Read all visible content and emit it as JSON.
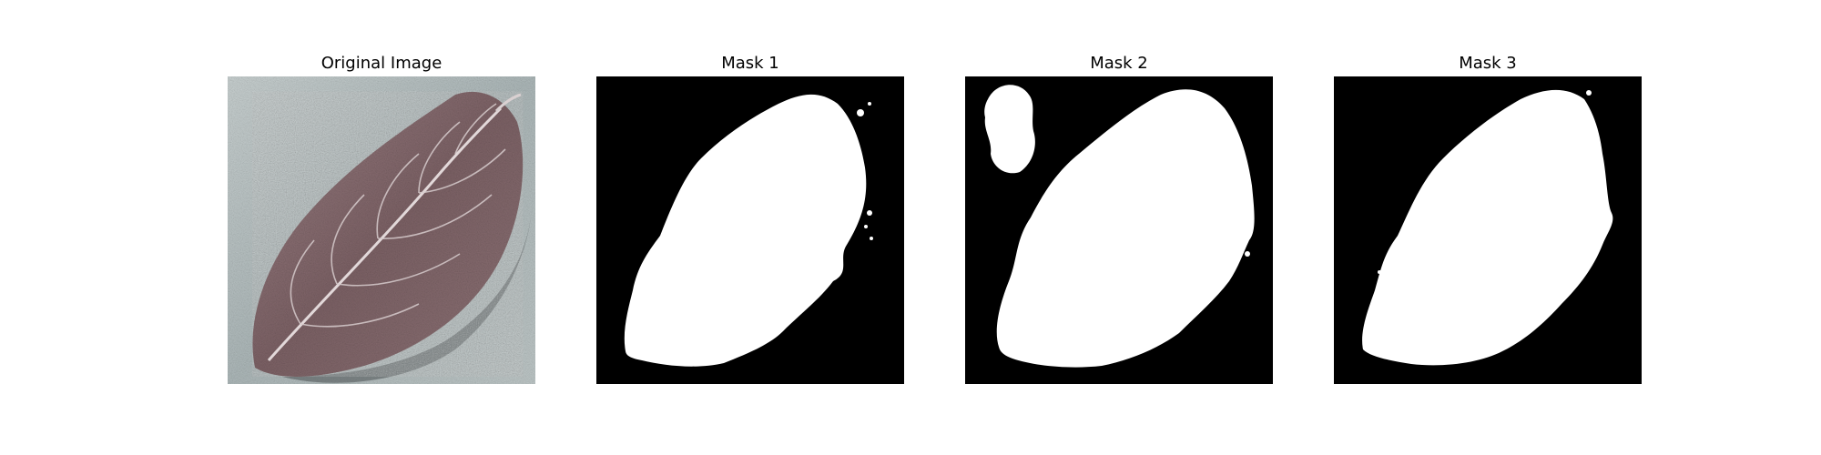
{
  "panels": [
    {
      "title": "Original Image",
      "icon": "leaf-photo"
    },
    {
      "title": "Mask 1",
      "icon": "leaf-mask"
    },
    {
      "title": "Mask 2",
      "icon": "leaf-mask"
    },
    {
      "title": "Mask 3",
      "icon": "leaf-mask"
    }
  ],
  "colors": {
    "mask_background": "#000000",
    "mask_foreground": "#ffffff",
    "leaf": "#8a6f72",
    "leaf_vein": "#d8cfd0",
    "surface": "#b9c3c3"
  }
}
